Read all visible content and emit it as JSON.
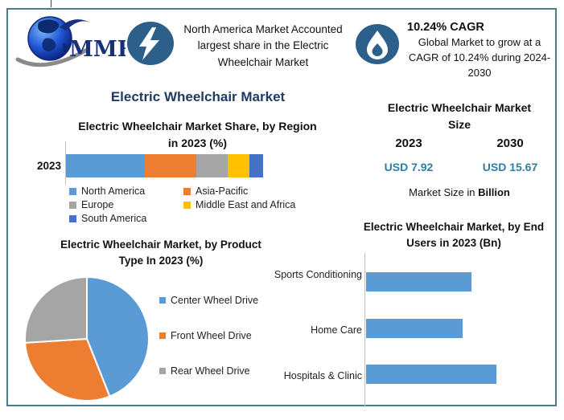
{
  "banner": {
    "logo_text": "MMR",
    "highlight_text": "North America Market Accounted largest share in the Electric Wheelchair Market",
    "cagr_title": "10.24% CAGR",
    "cagr_description": "Global Market to grow at a CAGR of 10.24% during 2024-2030"
  },
  "main_title": "Electric Wheelchair Market",
  "region_section": {
    "title_line1": "Electric Wheelchair Market Share, by Region",
    "title_line2": "in 2023 (%)"
  },
  "market_size": {
    "title_line1": "Electric Wheelchair Market",
    "title_line2": "Size",
    "year_left": "2023",
    "year_right": "2030",
    "value_left": "USD 7.92",
    "value_right": "USD 15.67",
    "note_regular": "Market Size in ",
    "note_bold": "Billion"
  },
  "product_section": {
    "title_line1": "Electric Wheelchair Market, by Product",
    "title_line2": "Type In 2023 (%)"
  },
  "end_users_section": {
    "title_line1": "Electric Wheelchair Market, by End",
    "title_line2": "Users in 2023 (Bn)"
  },
  "icons": {
    "lightning": "lightning-bolt-icon",
    "flame": "flame-icon",
    "globe": "globe-logo-icon"
  },
  "colors": {
    "accent_navy": "#1F3A63",
    "badge_blue": "#2D5F8B",
    "value_teal": "#2E7E9E",
    "frame_teal": "#4E7B8B",
    "bar_blue": "#5B9BD5"
  },
  "chart_data": [
    {
      "id": "region_share",
      "type": "bar",
      "subtype": "stacked-horizontal",
      "title": "Electric Wheelchair Market Share, by Region in 2023 (%)",
      "categories": [
        "2023"
      ],
      "unit": "%",
      "legend_position": "bottom",
      "series": [
        {
          "name": "North America",
          "value": 40,
          "color": "#5B9BD5"
        },
        {
          "name": "Asia-Pacific",
          "value": 26,
          "color": "#ED7D31"
        },
        {
          "name": "Europe",
          "value": 16,
          "color": "#A5A5A5"
        },
        {
          "name": "Middle East and Africa",
          "value": 11,
          "color": "#FFC000"
        },
        {
          "name": "South America",
          "value": 7,
          "color": "#4472C4"
        }
      ]
    },
    {
      "id": "product_type",
      "type": "pie",
      "title": "Electric Wheelchair Market, by Product Type In 2023 (%)",
      "labels": [
        "Center Wheel Drive",
        "Front Wheel Drive",
        "Rear Wheel Drive"
      ],
      "values": [
        44,
        30,
        26
      ],
      "colors": [
        "#5B9BD5",
        "#ED7D31",
        "#A5A5A5"
      ],
      "unit": "%",
      "legend_position": "right"
    },
    {
      "id": "end_users",
      "type": "bar",
      "subtype": "horizontal",
      "title": "Electric Wheelchair Market, by End Users in 2023 (Bn)",
      "categories": [
        "Sports Conditioning",
        "Home Care",
        "Hospitals & Clinic"
      ],
      "values": [
        2.5,
        2.3,
        3.1
      ],
      "unit": "Bn",
      "xlim": [
        0,
        4.5
      ],
      "color": "#5B9BD5"
    },
    {
      "id": "market_size",
      "type": "table",
      "title": "Electric Wheelchair Market Size",
      "columns": [
        "2023",
        "2030"
      ],
      "values_usd_billion": [
        7.92,
        15.67
      ],
      "note": "Market Size in Billion"
    }
  ]
}
